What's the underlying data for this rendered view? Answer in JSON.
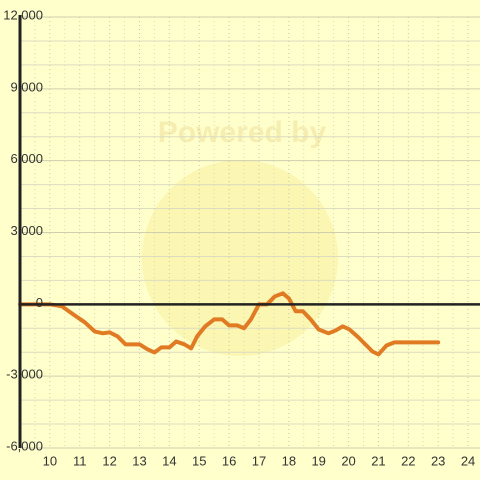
{
  "chart_data": {
    "type": "line",
    "watermark": "Powered by",
    "x": [
      9,
      10,
      10.4,
      10.83,
      11.17,
      11.5,
      11.77,
      12,
      12.27,
      12.53,
      13,
      13.27,
      13.5,
      13.73,
      14,
      14.23,
      14.5,
      14.73,
      14.93,
      15.2,
      15.5,
      15.77,
      16,
      16.27,
      16.5,
      16.73,
      17,
      17.27,
      17.53,
      17.8,
      18,
      18.23,
      18.47,
      18.73,
      19,
      19.33,
      19.57,
      19.8,
      20.03,
      20.33,
      20.6,
      20.8,
      21,
      21.27,
      21.53,
      22,
      23
    ],
    "series": [
      {
        "color": "#e07b24",
        "values": [
          0,
          0,
          -80,
          -460,
          -750,
          -1130,
          -1210,
          -1170,
          -1340,
          -1670,
          -1670,
          -1880,
          -2010,
          -1800,
          -1800,
          -1550,
          -1670,
          -1840,
          -1340,
          -920,
          -630,
          -630,
          -880,
          -880,
          -1000,
          -630,
          0,
          0,
          330,
          460,
          250,
          -290,
          -290,
          -630,
          -1050,
          -1210,
          -1090,
          -920,
          -1050,
          -1380,
          -1720,
          -1970,
          -2090,
          -1720,
          -1590,
          -1590,
          -1590
        ]
      }
    ],
    "xlim": [
      9,
      24.4
    ],
    "xticks": [
      10,
      11,
      12,
      13,
      14,
      15,
      16,
      17,
      18,
      19,
      20,
      21,
      22,
      23,
      24
    ],
    "ylim": [
      -6000,
      12000
    ],
    "yticks": [
      {
        "value": -6000,
        "label": "-6,000"
      },
      {
        "value": -3000,
        "label": "-3,000"
      },
      0,
      {
        "value": 3000,
        "label": "3,000"
      },
      {
        "value": 6000,
        "label": "6,000"
      },
      {
        "value": 9000,
        "label": "9,000"
      },
      {
        "value": 12000,
        "label": "12,000"
      }
    ],
    "grid": true
  }
}
